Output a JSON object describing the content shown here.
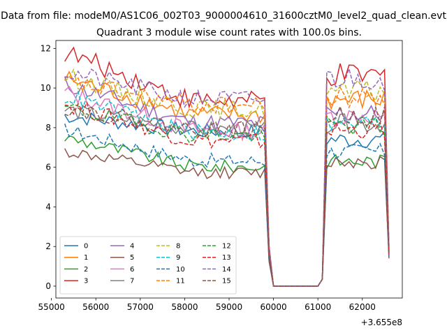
{
  "chart_data": {
    "type": "line",
    "suptitle": "Data from file: modeM0/AS1C06_002T03_9000004610_31600cztM0_level2_quad_clean.evt",
    "title": "Quadrant 3 module wise count rates with 100.0s bins.",
    "xlabel": "",
    "ylabel": "",
    "x_offset_label": "+3.655e8",
    "xlim": [
      55100,
      62900
    ],
    "ylim": [
      -0.6,
      12.4
    ],
    "x_ticks": [
      55000,
      56000,
      57000,
      58000,
      59000,
      60000,
      61000,
      62000
    ],
    "x_tick_labels": [
      "55000",
      "56000",
      "57000",
      "58000",
      "59000",
      "60000",
      "61000",
      "62000"
    ],
    "y_ticks": [
      0,
      2,
      4,
      6,
      8,
      10,
      12
    ],
    "y_tick_labels": [
      "0",
      "2",
      "4",
      "6",
      "8",
      "10",
      "12"
    ],
    "x_start": 55300,
    "x_step": 100,
    "n_points": 74,
    "gap_start_index": 47,
    "gap_end_index": 59,
    "legend": {
      "position": "lower-left",
      "columns": 4
    },
    "series": [
      {
        "name": "0",
        "color": "#1f77b4",
        "dash": "solid",
        "first": 8.6,
        "end": 7.8,
        "resume": 7.4,
        "last": 1.8
      },
      {
        "name": "1",
        "color": "#ff7f0e",
        "dash": "solid",
        "first": 10.5,
        "end": 8.6,
        "resume": 9.4,
        "last": 1.8
      },
      {
        "name": "2",
        "color": "#2ca02c",
        "dash": "solid",
        "first": 7.5,
        "end": 6.0,
        "resume": 6.3,
        "last": 1.5
      },
      {
        "name": "3",
        "color": "#d62728",
        "dash": "solid",
        "first": 11.8,
        "end": 9.3,
        "resume": 10.6,
        "last": 2.0
      },
      {
        "name": "4",
        "color": "#9467bd",
        "dash": "solid",
        "first": 10.2,
        "end": 8.2,
        "resume": 8.7,
        "last": 1.9
      },
      {
        "name": "5",
        "color": "#8c564b",
        "dash": "solid",
        "first": 6.8,
        "end": 5.7,
        "resume": 6.3,
        "last": 1.4
      },
      {
        "name": "6",
        "color": "#e377c2",
        "dash": "solid",
        "first": 9.8,
        "end": 7.8,
        "resume": 8.6,
        "last": 1.8
      },
      {
        "name": "7",
        "color": "#7f7f7f",
        "dash": "solid",
        "first": 8.9,
        "end": 7.9,
        "resume": 8.2,
        "last": 1.7
      },
      {
        "name": "8",
        "color": "#bcbd22",
        "dash": "dashed",
        "first": 10.6,
        "end": 8.9,
        "resume": 9.8,
        "last": 2.0
      },
      {
        "name": "9",
        "color": "#17becf",
        "dash": "dashed",
        "first": 9.6,
        "end": 7.7,
        "resume": 8.2,
        "last": 1.7
      },
      {
        "name": "10",
        "color": "#1f77b4",
        "dash": "dashed",
        "first": 7.9,
        "end": 6.3,
        "resume": 6.8,
        "last": 1.5
      },
      {
        "name": "11",
        "color": "#ff7f0e",
        "dash": "dashed",
        "first": 10.3,
        "end": 9.1,
        "resume": 9.5,
        "last": 1.9
      },
      {
        "name": "12",
        "color": "#2ca02c",
        "dash": "dashed",
        "first": 9.0,
        "end": 7.6,
        "resume": 8.1,
        "last": 1.7
      },
      {
        "name": "13",
        "color": "#d62728",
        "dash": "dashed",
        "first": 9.2,
        "end": 7.3,
        "resume": 7.9,
        "last": 1.6
      },
      {
        "name": "14",
        "color": "#9467bd",
        "dash": "dashed",
        "first": 10.8,
        "end": 9.4,
        "resume": 10.5,
        "last": 2.0
      },
      {
        "name": "15",
        "color": "#8c564b",
        "dash": "dashed",
        "first": 9.0,
        "end": 7.9,
        "resume": 8.6,
        "last": 1.7
      }
    ]
  }
}
